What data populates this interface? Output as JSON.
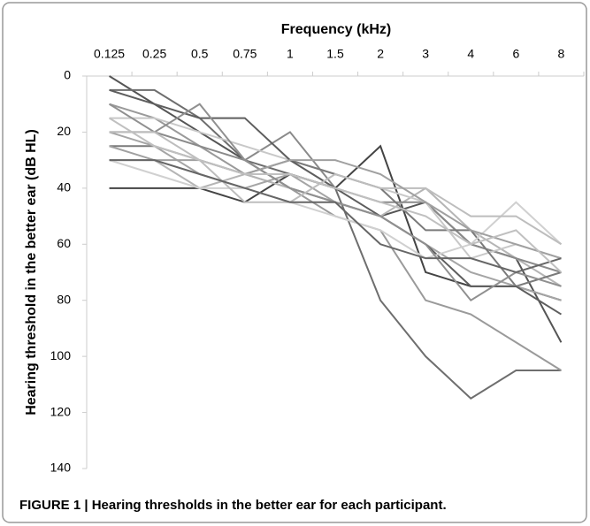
{
  "chart_data": {
    "type": "line",
    "title": "Frequency (kHz)",
    "y_label": "Hearing threshold in the better ear (dB HL)",
    "caption": "FIGURE 1 | Hearing thresholds in the better ear for each participant.",
    "categories": [
      "0.125",
      "0.25",
      "0.5",
      "0.75",
      "1",
      "1.5",
      "2",
      "3",
      "4",
      "6",
      "8"
    ],
    "x_axis_position": "top",
    "y_inverted": true,
    "ylim": [
      0,
      140
    ],
    "yticks": [
      0,
      20,
      40,
      60,
      80,
      100,
      120,
      140
    ],
    "grid": false,
    "series": [
      {
        "color": "#555555",
        "values": [
          0,
          10,
          20,
          30,
          40,
          45,
          50,
          45,
          60,
          65,
          95
        ]
      },
      {
        "color": "#6e6e6e",
        "values": [
          5,
          5,
          15,
          30,
          35,
          40,
          80,
          100,
          115,
          105,
          105
        ]
      },
      {
        "color": "#9a9a9a",
        "values": [
          10,
          15,
          25,
          35,
          40,
          50,
          55,
          80,
          85,
          95,
          105
        ]
      },
      {
        "color": "#444444",
        "values": [
          40,
          40,
          40,
          45,
          35,
          40,
          25,
          70,
          75,
          75,
          80
        ]
      },
      {
        "color": "#b5b5b5",
        "values": [
          30,
          30,
          40,
          35,
          40,
          45,
          50,
          40,
          55,
          65,
          75
        ]
      },
      {
        "color": "#8a8a8a",
        "values": [
          20,
          20,
          25,
          30,
          20,
          40,
          45,
          45,
          60,
          65,
          70
        ]
      },
      {
        "color": "#c8c8c8",
        "values": [
          15,
          15,
          20,
          25,
          30,
          35,
          40,
          45,
          65,
          60,
          65
        ]
      },
      {
        "color": "#7a7a7a",
        "values": [
          25,
          25,
          30,
          35,
          30,
          35,
          40,
          55,
          55,
          75,
          70
        ]
      },
      {
        "color": "#a5a5a5",
        "values": [
          20,
          25,
          35,
          40,
          35,
          45,
          50,
          60,
          70,
          75,
          80
        ]
      },
      {
        "color": "#5e5e5e",
        "values": [
          5,
          10,
          15,
          15,
          30,
          40,
          50,
          60,
          75,
          75,
          85
        ]
      },
      {
        "color": "#d0d0d0",
        "values": [
          30,
          35,
          40,
          40,
          45,
          50,
          55,
          65,
          60,
          45,
          60
        ]
      },
      {
        "color": "#909090",
        "values": [
          10,
          20,
          10,
          30,
          40,
          45,
          50,
          60,
          80,
          70,
          75
        ]
      },
      {
        "color": "#bdbdbd",
        "values": [
          20,
          20,
          30,
          45,
          45,
          35,
          40,
          40,
          50,
          50,
          60
        ]
      },
      {
        "color": "#a0a0a0",
        "values": [
          25,
          30,
          30,
          35,
          30,
          30,
          35,
          45,
          55,
          60,
          65
        ]
      },
      {
        "color": "#666666",
        "values": [
          30,
          30,
          35,
          40,
          45,
          45,
          60,
          65,
          65,
          70,
          65
        ]
      },
      {
        "color": "#c0c0c0",
        "values": [
          15,
          25,
          30,
          35,
          35,
          40,
          45,
          50,
          60,
          55,
          70
        ]
      }
    ]
  }
}
